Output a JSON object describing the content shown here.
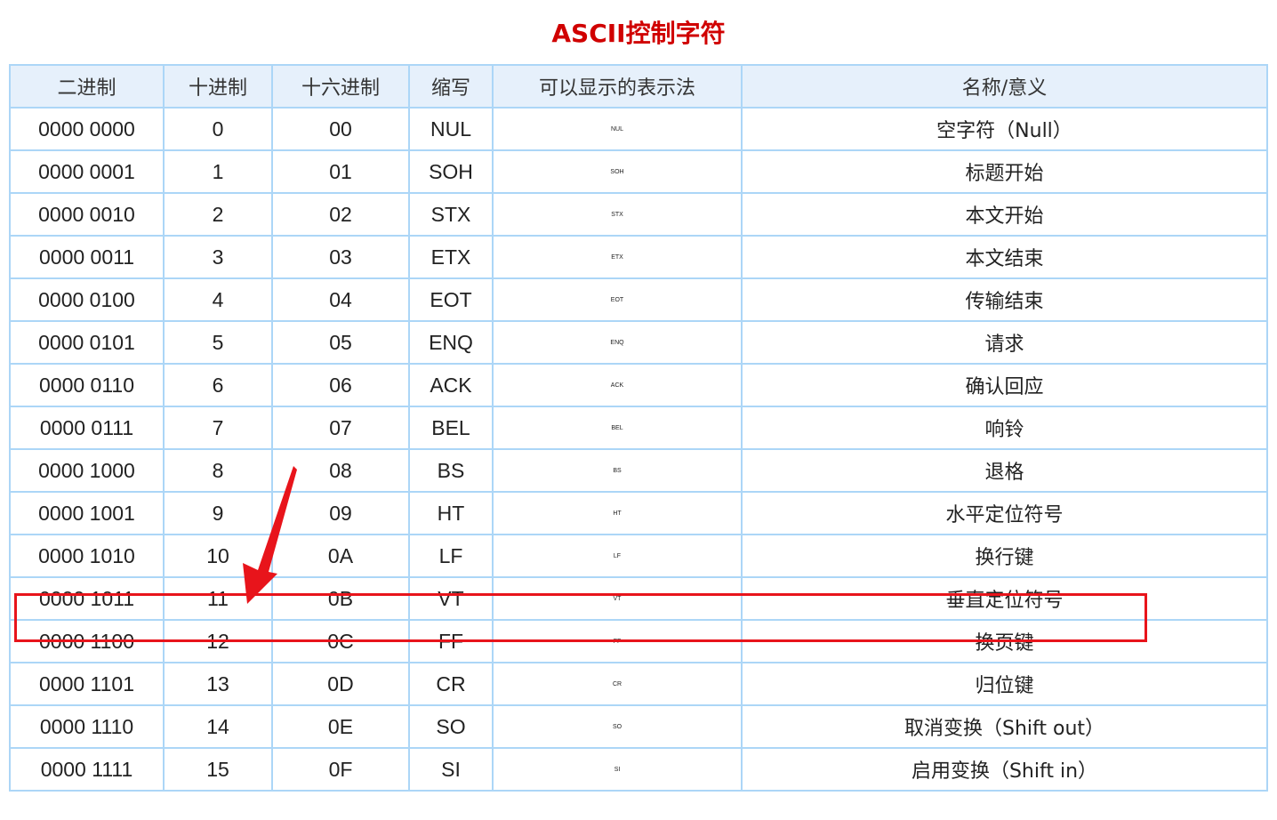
{
  "title": "ASCII控制字符",
  "headers": [
    "二进制",
    "十进制",
    "十六进制",
    "缩写",
    "可以显示的表示法",
    "名称/意义"
  ],
  "rows": [
    [
      "0000 0000",
      "0",
      "00",
      "NUL",
      "NUL",
      "空字符（Null）"
    ],
    [
      "0000 0001",
      "1",
      "01",
      "SOH",
      "SOH",
      "标题开始"
    ],
    [
      "0000 0010",
      "2",
      "02",
      "STX",
      "STX",
      "本文开始"
    ],
    [
      "0000 0011",
      "3",
      "03",
      "ETX",
      "ETX",
      "本文结束"
    ],
    [
      "0000 0100",
      "4",
      "04",
      "EOT",
      "EOT",
      "传输结束"
    ],
    [
      "0000 0101",
      "5",
      "05",
      "ENQ",
      "ENQ",
      "请求"
    ],
    [
      "0000 0110",
      "6",
      "06",
      "ACK",
      "ACK",
      "确认回应"
    ],
    [
      "0000 0111",
      "7",
      "07",
      "BEL",
      "BEL",
      "响铃"
    ],
    [
      "0000 1000",
      "8",
      "08",
      "BS",
      "BS",
      "退格"
    ],
    [
      "0000 1001",
      "9",
      "09",
      "HT",
      "HT",
      "水平定位符号"
    ],
    [
      "0000 1010",
      "10",
      "0A",
      "LF",
      "LF",
      "换行键"
    ],
    [
      "0000 1011",
      "11",
      "0B",
      "VT",
      "VT",
      "垂直定位符号"
    ],
    [
      "0000 1100",
      "12",
      "0C",
      "FF",
      "FF",
      "换页键"
    ],
    [
      "0000 1101",
      "13",
      "0D",
      "CR",
      "CR",
      "归位键"
    ],
    [
      "0000 1110",
      "14",
      "0E",
      "SO",
      "SO",
      "取消变换（Shift out）"
    ],
    [
      "0000 1111",
      "15",
      "0F",
      "SI",
      "SI",
      "启用变换（Shift in）"
    ]
  ],
  "highlighted_row": "0000 1011",
  "colors": {
    "title": "#d00000",
    "grid": "#acd6f7",
    "header_bg": "#e6f0fb",
    "annotation": "#e8141b"
  }
}
